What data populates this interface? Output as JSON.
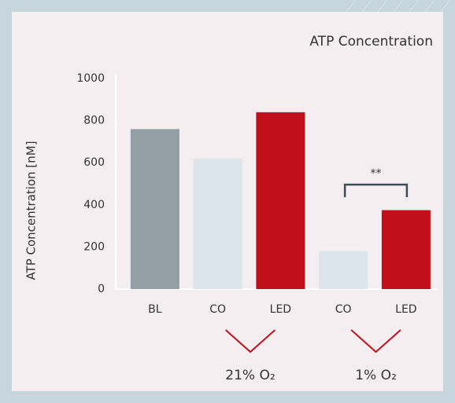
{
  "chart_data": {
    "type": "bar",
    "title": "ATP Concentration",
    "y_label": "ATP Concentration  [nM]",
    "categories": [
      "BL",
      "CO",
      "LED",
      "CO",
      "LED"
    ],
    "values": [
      760,
      620,
      840,
      180,
      375
    ],
    "colors": [
      "#939fa4",
      "#dde5ec",
      "#c0111a",
      "#dde5ec",
      "#c0111a"
    ],
    "ylim": [
      0,
      1000
    ],
    "yticks": [
      0,
      200,
      400,
      600,
      800,
      1000
    ],
    "grid": false,
    "significance": {
      "label": "**",
      "between": [
        3,
        4
      ]
    },
    "groups": [
      {
        "label": "21% O₂",
        "between": [
          1,
          2
        ]
      },
      {
        "label": "1% O₂",
        "between": [
          3,
          4
        ]
      }
    ]
  }
}
